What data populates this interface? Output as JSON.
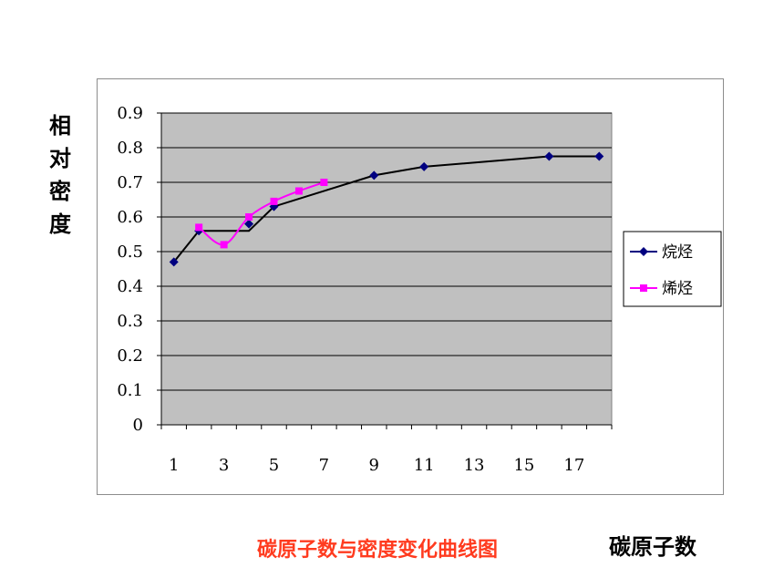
{
  "chart_data": {
    "type": "line",
    "title": "碳原子数与密度变化曲线图",
    "xlabel": "碳原子数",
    "ylabel": [
      "相",
      "对",
      "密",
      "度"
    ],
    "ylim": [
      0,
      0.9
    ],
    "xlim": [
      1,
      18
    ],
    "x_ticks": [
      "1",
      "3",
      "5",
      "7",
      "9",
      "11",
      "13",
      "15",
      "17"
    ],
    "y_ticks": [
      "0",
      "0.1",
      "0.2",
      "0.3",
      "0.4",
      "0.5",
      "0.6",
      "0.7",
      "0.8",
      "0.9"
    ],
    "grid": true,
    "legend_position": "right",
    "plot_background": "#c0c0c0",
    "series": [
      {
        "name": "烷烃",
        "color": "#000080",
        "line_color": "#000000",
        "marker": "diamond",
        "line_style": "stepped",
        "x": [
          1,
          2,
          4,
          5,
          9,
          11,
          16,
          18
        ],
        "y": [
          0.47,
          0.56,
          0.58,
          0.63,
          0.72,
          0.745,
          0.775,
          0.775
        ]
      },
      {
        "name": "烯烃",
        "color": "#ff00ff",
        "line_color": "#ff00ff",
        "marker": "square",
        "line_style": "smooth",
        "x": [
          2,
          3,
          4,
          5,
          6,
          7
        ],
        "y": [
          0.57,
          0.52,
          0.6,
          0.645,
          0.675,
          0.7
        ]
      }
    ]
  }
}
